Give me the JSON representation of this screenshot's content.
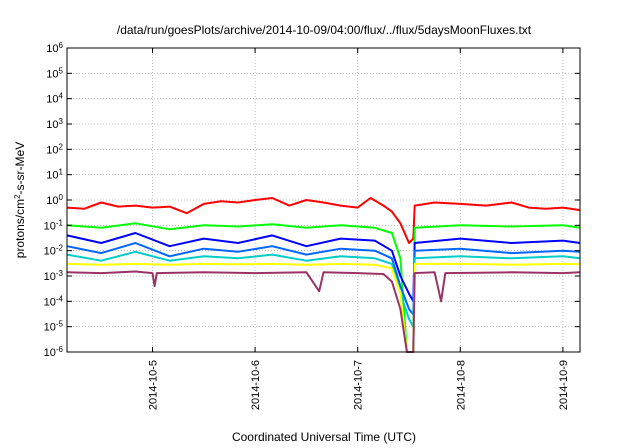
{
  "chart_data": {
    "type": "line",
    "title": "/data/run/goesPlots/archive/2014-10-09/04:00/flux/../flux/5daysMoonFluxes.txt",
    "xlabel": "Coordinated Universal Time (UTC)",
    "ylabel": {
      "base": "protons/cm",
      "sup": "2",
      "rest": "-s-sr-MeV"
    },
    "x_scale": "date",
    "xlim": [
      "2014-10-04 04:00",
      "2014-10-09 04:00"
    ],
    "x_ticks": [
      {
        "value": "2014-10-05 00:00",
        "label": "2014-10-5"
      },
      {
        "value": "2014-10-06 00:00",
        "label": "2014-10-6"
      },
      {
        "value": "2014-10-07 00:00",
        "label": "2014-10-7"
      },
      {
        "value": "2014-10-08 00:00",
        "label": "2014-10-8"
      },
      {
        "value": "2014-10-09 00:00",
        "label": "2014-10-9"
      }
    ],
    "y_scale": "log",
    "ylim": [
      1e-06,
      1000000.0
    ],
    "y_ticks": [
      {
        "value": 1e-06,
        "base": "10",
        "exp": "-6"
      },
      {
        "value": 1e-05,
        "base": "10",
        "exp": "-5"
      },
      {
        "value": 0.0001,
        "base": "10",
        "exp": "-4"
      },
      {
        "value": 0.001,
        "base": "10",
        "exp": "-3"
      },
      {
        "value": 0.01,
        "base": "10",
        "exp": "-2"
      },
      {
        "value": 0.1,
        "base": "10",
        "exp": "-1"
      },
      {
        "value": 1,
        "base": "10",
        "exp": "0"
      },
      {
        "value": 10,
        "base": "10",
        "exp": "1"
      },
      {
        "value": 100,
        "base": "10",
        "exp": "2"
      },
      {
        "value": 1000,
        "base": "10",
        "exp": "3"
      },
      {
        "value": 10000,
        "base": "10",
        "exp": "4"
      },
      {
        "value": 100000,
        "base": "10",
        "exp": "5"
      },
      {
        "value": 1000000,
        "base": "10",
        "exp": "6"
      }
    ],
    "grid": true,
    "legend": "none",
    "series": [
      {
        "color": "#ff0000",
        "points": [
          [
            "2014-10-04 04:00",
            0.5
          ],
          [
            "2014-10-04 08:00",
            0.45
          ],
          [
            "2014-10-04 12:00",
            0.8
          ],
          [
            "2014-10-04 16:00",
            0.55
          ],
          [
            "2014-10-04 20:00",
            0.6
          ],
          [
            "2014-10-05 00:00",
            0.5
          ],
          [
            "2014-10-05 04:00",
            0.55
          ],
          [
            "2014-10-05 08:00",
            0.3
          ],
          [
            "2014-10-05 12:00",
            0.7
          ],
          [
            "2014-10-05 16:00",
            0.9
          ],
          [
            "2014-10-05 20:00",
            0.8
          ],
          [
            "2014-10-06 00:00",
            1.0
          ],
          [
            "2014-10-06 04:00",
            1.2
          ],
          [
            "2014-10-06 08:00",
            0.6
          ],
          [
            "2014-10-06 12:00",
            1.0
          ],
          [
            "2014-10-06 16:00",
            0.8
          ],
          [
            "2014-10-06 20:00",
            0.6
          ],
          [
            "2014-10-07 00:00",
            0.5
          ],
          [
            "2014-10-07 03:00",
            1.2
          ],
          [
            "2014-10-07 06:00",
            0.6
          ],
          [
            "2014-10-07 08:00",
            0.35
          ],
          [
            "2014-10-07 10:00",
            0.12
          ],
          [
            "2014-10-07 12:00",
            0.02
          ],
          [
            "2014-10-07 13:00",
            0.03
          ],
          [
            "2014-10-07 13:20",
            0.6
          ],
          [
            "2014-10-07 18:00",
            0.8
          ],
          [
            "2014-10-08 00:00",
            0.7
          ],
          [
            "2014-10-08 06:00",
            0.6
          ],
          [
            "2014-10-08 12:00",
            0.8
          ],
          [
            "2014-10-08 16:00",
            0.5
          ],
          [
            "2014-10-08 20:00",
            0.45
          ],
          [
            "2014-10-09 00:00",
            0.5
          ],
          [
            "2014-10-09 04:00",
            0.4
          ]
        ]
      },
      {
        "color": "#00ff00",
        "points": [
          [
            "2014-10-04 04:00",
            0.1
          ],
          [
            "2014-10-04 12:00",
            0.08
          ],
          [
            "2014-10-04 20:00",
            0.12
          ],
          [
            "2014-10-05 04:00",
            0.07
          ],
          [
            "2014-10-05 12:00",
            0.1
          ],
          [
            "2014-10-05 20:00",
            0.09
          ],
          [
            "2014-10-06 04:00",
            0.11
          ],
          [
            "2014-10-06 12:00",
            0.08
          ],
          [
            "2014-10-06 20:00",
            0.1
          ],
          [
            "2014-10-07 04:00",
            0.08
          ],
          [
            "2014-10-07 08:00",
            0.05
          ],
          [
            "2014-10-07 10:00",
            0.005
          ],
          [
            "2014-10-07 11:30",
            1e-06
          ],
          [
            "2014-10-07 13:00",
            1e-06
          ],
          [
            "2014-10-07 13:20",
            0.08
          ],
          [
            "2014-10-08 00:00",
            0.1
          ],
          [
            "2014-10-08 12:00",
            0.09
          ],
          [
            "2014-10-09 00:00",
            0.1
          ],
          [
            "2014-10-09 04:00",
            0.08
          ]
        ]
      },
      {
        "color": "#0000ff",
        "points": [
          [
            "2014-10-04 04:00",
            0.04
          ],
          [
            "2014-10-04 12:00",
            0.02
          ],
          [
            "2014-10-04 20:00",
            0.05
          ],
          [
            "2014-10-05 04:00",
            0.015
          ],
          [
            "2014-10-05 12:00",
            0.03
          ],
          [
            "2014-10-05 20:00",
            0.02
          ],
          [
            "2014-10-06 04:00",
            0.04
          ],
          [
            "2014-10-06 12:00",
            0.015
          ],
          [
            "2014-10-06 20:00",
            0.03
          ],
          [
            "2014-10-07 04:00",
            0.025
          ],
          [
            "2014-10-07 08:00",
            0.01
          ],
          [
            "2014-10-07 10:00",
            0.001
          ],
          [
            "2014-10-07 12:00",
            0.0002
          ],
          [
            "2014-10-07 13:00",
            0.0001
          ],
          [
            "2014-10-07 13:20",
            0.02
          ],
          [
            "2014-10-08 00:00",
            0.03
          ],
          [
            "2014-10-08 12:00",
            0.02
          ],
          [
            "2014-10-09 00:00",
            0.025
          ],
          [
            "2014-10-09 04:00",
            0.02
          ]
        ]
      },
      {
        "color": "#0066ff",
        "points": [
          [
            "2014-10-04 04:00",
            0.015
          ],
          [
            "2014-10-04 12:00",
            0.008
          ],
          [
            "2014-10-04 20:00",
            0.02
          ],
          [
            "2014-10-05 04:00",
            0.006
          ],
          [
            "2014-10-05 12:00",
            0.012
          ],
          [
            "2014-10-05 20:00",
            0.009
          ],
          [
            "2014-10-06 04:00",
            0.015
          ],
          [
            "2014-10-06 12:00",
            0.007
          ],
          [
            "2014-10-06 20:00",
            0.012
          ],
          [
            "2014-10-07 04:00",
            0.01
          ],
          [
            "2014-10-07 08:00",
            0.005
          ],
          [
            "2014-10-07 10:00",
            0.0004
          ],
          [
            "2014-10-07 12:00",
            5e-05
          ],
          [
            "2014-10-07 13:00",
            3e-05
          ],
          [
            "2014-10-07 13:20",
            0.01
          ],
          [
            "2014-10-08 00:00",
            0.012
          ],
          [
            "2014-10-08 12:00",
            0.008
          ],
          [
            "2014-10-09 00:00",
            0.01
          ],
          [
            "2014-10-09 04:00",
            0.009
          ]
        ]
      },
      {
        "color": "#00cccc",
        "points": [
          [
            "2014-10-04 04:00",
            0.007
          ],
          [
            "2014-10-04 12:00",
            0.004
          ],
          [
            "2014-10-04 20:00",
            0.009
          ],
          [
            "2014-10-05 04:00",
            0.004
          ],
          [
            "2014-10-05 12:00",
            0.006
          ],
          [
            "2014-10-05 20:00",
            0.005
          ],
          [
            "2014-10-06 04:00",
            0.007
          ],
          [
            "2014-10-06 12:00",
            0.004
          ],
          [
            "2014-10-06 20:00",
            0.006
          ],
          [
            "2014-10-07 04:00",
            0.005
          ],
          [
            "2014-10-07 08:00",
            0.003
          ],
          [
            "2014-10-07 10:00",
            0.0002
          ],
          [
            "2014-10-07 12:00",
            2e-05
          ],
          [
            "2014-10-07 13:00",
            1e-05
          ],
          [
            "2014-10-07 13:20",
            0.005
          ],
          [
            "2014-10-08 00:00",
            0.006
          ],
          [
            "2014-10-08 12:00",
            0.005
          ],
          [
            "2014-10-09 00:00",
            0.006
          ],
          [
            "2014-10-09 04:00",
            0.005
          ]
        ]
      },
      {
        "color": "#ffff00",
        "points": [
          [
            "2014-10-04 04:00",
            0.003
          ],
          [
            "2014-10-04 12:00",
            0.0028
          ],
          [
            "2014-10-04 20:00",
            0.003
          ],
          [
            "2014-10-05 04:00",
            0.0028
          ],
          [
            "2014-10-05 12:00",
            0.003
          ],
          [
            "2014-10-05 20:00",
            0.0029
          ],
          [
            "2014-10-06 04:00",
            0.003
          ],
          [
            "2014-10-06 12:00",
            0.0028
          ],
          [
            "2014-10-06 20:00",
            0.003
          ],
          [
            "2014-10-07 04:00",
            0.0028
          ],
          [
            "2014-10-07 08:00",
            0.002
          ],
          [
            "2014-10-07 10:00",
            0.0002
          ],
          [
            "2014-10-07 11:30",
            1e-06
          ],
          [
            "2014-10-07 13:00",
            1e-06
          ],
          [
            "2014-10-07 13:20",
            0.003
          ],
          [
            "2014-10-08 00:00",
            0.003
          ],
          [
            "2014-10-08 12:00",
            0.0028
          ],
          [
            "2014-10-09 00:00",
            0.003
          ],
          [
            "2014-10-09 04:00",
            0.0029
          ]
        ]
      },
      {
        "color": "#993366",
        "points": [
          [
            "2014-10-04 04:00",
            0.0014
          ],
          [
            "2014-10-04 12:00",
            0.0013
          ],
          [
            "2014-10-04 20:00",
            0.0015
          ],
          [
            "2014-10-05 00:00",
            0.0013
          ],
          [
            "2014-10-05 00:30",
            0.0004
          ],
          [
            "2014-10-05 01:00",
            0.0013
          ],
          [
            "2014-10-05 12:00",
            0.0014
          ],
          [
            "2014-10-06 00:00",
            0.0013
          ],
          [
            "2014-10-06 12:00",
            0.0014
          ],
          [
            "2014-10-06 15:00",
            0.00025
          ],
          [
            "2014-10-06 16:00",
            0.0014
          ],
          [
            "2014-10-07 00:00",
            0.0013
          ],
          [
            "2014-10-07 06:00",
            0.0012
          ],
          [
            "2014-10-07 08:00",
            0.0006
          ],
          [
            "2014-10-07 10:00",
            5e-05
          ],
          [
            "2014-10-07 11:30",
            1e-06
          ],
          [
            "2014-10-07 13:00",
            1e-06
          ],
          [
            "2014-10-07 13:20",
            0.0013
          ],
          [
            "2014-10-07 18:00",
            0.0014
          ],
          [
            "2014-10-07 19:30",
            0.0001
          ],
          [
            "2014-10-07 20:30",
            0.0013
          ],
          [
            "2014-10-08 12:00",
            0.0014
          ],
          [
            "2014-10-09 00:00",
            0.0013
          ],
          [
            "2014-10-09 04:00",
            0.0014
          ]
        ]
      }
    ]
  }
}
